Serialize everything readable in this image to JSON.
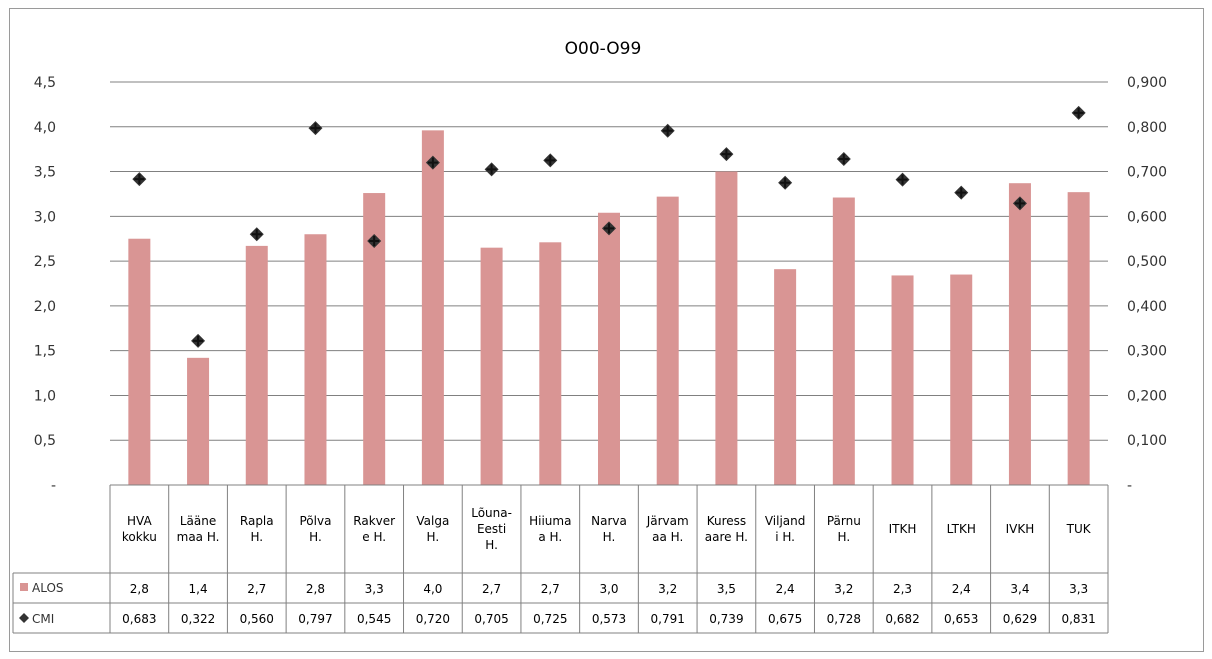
{
  "chart_data": {
    "type": "bar",
    "title": "O00-O99",
    "categories": [
      [
        "HVA",
        "kokku"
      ],
      [
        "Lääne",
        "maa H."
      ],
      [
        "Rapla",
        "H."
      ],
      [
        "Põlva",
        "H."
      ],
      [
        "Rakver",
        "e H."
      ],
      [
        "Valga",
        "H."
      ],
      [
        "Lõuna-",
        "Eesti",
        "H."
      ],
      [
        "Hiiuma",
        "a H."
      ],
      [
        "Narva",
        "H."
      ],
      [
        "Järvam",
        "aa H."
      ],
      [
        "Kuress",
        "aare H."
      ],
      [
        "Viljand",
        "i H."
      ],
      [
        "Pärnu",
        "H."
      ],
      [
        "ITKH"
      ],
      [
        "LTKH"
      ],
      [
        "IVKH"
      ],
      [
        "TUK"
      ]
    ],
    "y_left": {
      "ylim": [
        0,
        4.5
      ],
      "ticks": [
        "-",
        "0,5",
        "1,0",
        "1,5",
        "2,0",
        "2,5",
        "3,0",
        "3,5",
        "4,0",
        "4,5"
      ]
    },
    "y_right": {
      "ylim": [
        0,
        0.9
      ],
      "ticks": [
        "-",
        "0,100",
        "0,200",
        "0,300",
        "0,400",
        "0,500",
        "0,600",
        "0,700",
        "0,800",
        "0,900"
      ]
    },
    "series": [
      {
        "name": "ALOS",
        "kind": "bar",
        "axis": "left",
        "color": "#d99594",
        "values": [
          2.75,
          1.42,
          2.67,
          2.8,
          3.26,
          3.96,
          2.65,
          2.71,
          3.04,
          3.22,
          3.5,
          2.41,
          3.21,
          2.34,
          2.35,
          3.37,
          3.27
        ],
        "labels": [
          "2,8",
          "1,4",
          "2,7",
          "2,8",
          "3,3",
          "4,0",
          "2,7",
          "2,7",
          "3,0",
          "3,2",
          "3,5",
          "2,4",
          "3,2",
          "2,3",
          "2,4",
          "3,4",
          "3,3"
        ]
      },
      {
        "name": "CMI",
        "kind": "marker",
        "axis": "right",
        "color": "#333333",
        "values": [
          0.683,
          0.322,
          0.56,
          0.797,
          0.545,
          0.72,
          0.705,
          0.725,
          0.573,
          0.791,
          0.739,
          0.675,
          0.728,
          0.682,
          0.653,
          0.629,
          0.831
        ],
        "labels": [
          "0,683",
          "0,322",
          "0,560",
          "0,797",
          "0,545",
          "0,720",
          "0,705",
          "0,725",
          "0,573",
          "0,791",
          "0,739",
          "0,675",
          "0,728",
          "0,682",
          "0,653",
          "0,629",
          "0,831"
        ]
      }
    ],
    "grid": true,
    "legend": "data-table"
  }
}
